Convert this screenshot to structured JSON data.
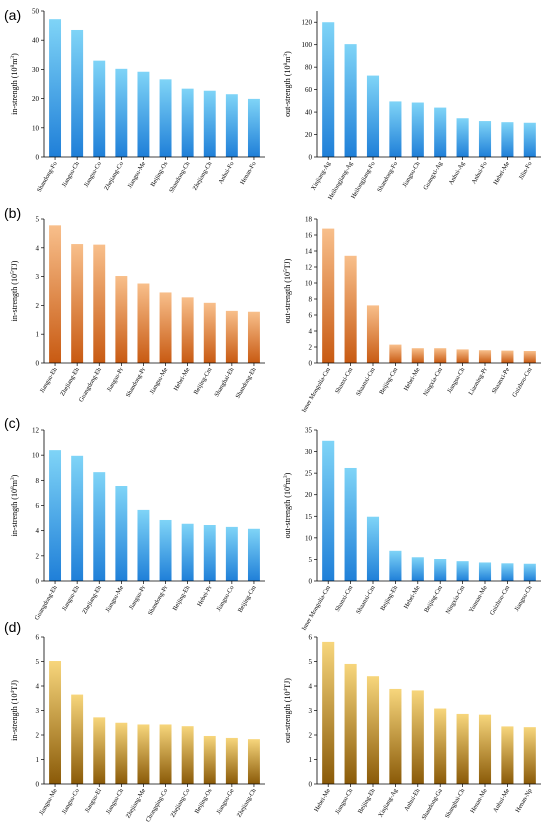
{
  "panel_labels": [
    "(a)",
    "(b)",
    "(c)",
    "(d)"
  ],
  "chart_data": [
    {
      "type": "bar",
      "panel": "(a)",
      "ylabel_main": "in-strength (10",
      "ylabel_sup": "8",
      "ylabel_end": "m",
      "ylabel_sup2": "3",
      "ylabel_tail": ")",
      "ylim": [
        0,
        50
      ],
      "yticks": [
        0,
        10,
        20,
        30,
        40,
        50
      ],
      "categories": [
        "Shandong-Fo",
        "Jiangsu-Ch",
        "Jiangsu-Co",
        "Zhejiang-Co",
        "Jiangsu-Me",
        "Beijing-Os",
        "Shandong-Ch",
        "Zhejiang-Ch",
        "Anhui-Fo",
        "Henan-Fo"
      ],
      "values": [
        47.2,
        43.5,
        33.0,
        30.2,
        29.2,
        26.6,
        23.4,
        22.7,
        21.5,
        19.9
      ],
      "color_top": "#7fd4f7",
      "color_bottom": "#1f7fd8"
    },
    {
      "type": "bar",
      "panel": "(a)",
      "ylabel_main": "out-strength (10",
      "ylabel_sup": "8",
      "ylabel_end": "m",
      "ylabel_sup2": "3",
      "ylabel_tail": ")",
      "ylim": [
        0,
        130
      ],
      "yticks": [
        0,
        20,
        40,
        60,
        80,
        100,
        120
      ],
      "categories": [
        "Xinjiang-Ag",
        "Heilongjiang-Ag",
        "Heilongjiang-Fo",
        "Shandong-Fo",
        "Jiangsu-Ch",
        "Guangxi-Ag",
        "Anhui-Ag",
        "Anhui-Fo",
        "Hebei-Me",
        "Jilin-Fo"
      ],
      "values": [
        120,
        100.5,
        72.5,
        49.5,
        48.5,
        44,
        34.5,
        32,
        31,
        30.5
      ],
      "color_top": "#7fd4f7",
      "color_bottom": "#1f7fd8"
    },
    {
      "type": "bar",
      "panel": "(b)",
      "ylabel_main": "in-strength (10",
      "ylabel_sup": "5",
      "ylabel_end": "TJ",
      "ylabel_sup2": "",
      "ylabel_tail": ")",
      "ylim": [
        0,
        5
      ],
      "yticks": [
        0,
        1,
        2,
        3,
        4,
        5
      ],
      "categories": [
        "Jiangsu-Eh",
        "Zhejiang-Eh",
        "Guangdong-Eh",
        "Jiangsu-Pr",
        "Shandong-Pr",
        "Jiangsu-Me",
        "Hebei-Me",
        "Beijing-Cm",
        "Shanghai-Eh",
        "Shandong-Eh"
      ],
      "values": [
        4.78,
        4.13,
        4.11,
        3.02,
        2.76,
        2.45,
        2.28,
        2.09,
        1.81,
        1.78
      ],
      "color_top": "#f8bf8b",
      "color_bottom": "#c85a12"
    },
    {
      "type": "bar",
      "panel": "(b)",
      "ylabel_main": "out-strength (10",
      "ylabel_sup": "5",
      "ylabel_end": "TJ",
      "ylabel_sup2": "",
      "ylabel_tail": ")",
      "ylim": [
        0,
        18
      ],
      "yticks": [
        0,
        2,
        4,
        6,
        8,
        10,
        12,
        14,
        16,
        18
      ],
      "categories": [
        "Inner Mongolia-Cm",
        "Shanxi-Cm",
        "Shaanxi-Cm",
        "Beijing-Cm",
        "Hebei-Me",
        "Ningxia-Cm",
        "Jiangsu-Ch",
        "Liaoning-Pr",
        "Shaanxi-Pe",
        "Guizhou-Cm"
      ],
      "values": [
        16.8,
        13.4,
        7.2,
        2.3,
        1.85,
        1.85,
        1.7,
        1.6,
        1.55,
        1.5
      ],
      "color_top": "#f8bf8b",
      "color_bottom": "#c85a12"
    },
    {
      "type": "bar",
      "panel": "(c)",
      "ylabel_main": "in-strength (10",
      "ylabel_sup": "8",
      "ylabel_end": "m",
      "ylabel_sup2": "3",
      "ylabel_tail": ")",
      "ylim": [
        0,
        12
      ],
      "yticks": [
        0,
        2,
        4,
        6,
        8,
        10,
        12
      ],
      "categories": [
        "Guangdong-Eh",
        "Jiangsu-Eh",
        "Zhejiang-Eh",
        "Jiangsu-Me",
        "Jiangsu-Pr",
        "Shandong-Pr",
        "Beijing-Eh",
        "Hebei-Pr",
        "Jiangsu-Co",
        "Beijing-Cm"
      ],
      "values": [
        10.4,
        9.95,
        8.65,
        7.55,
        5.65,
        4.85,
        4.55,
        4.45,
        4.3,
        4.15
      ],
      "color_top": "#7fd4f7",
      "color_bottom": "#1f7fd8"
    },
    {
      "type": "bar",
      "panel": "(c)",
      "ylabel_main": "out-strength (10",
      "ylabel_sup": "8",
      "ylabel_end": "m",
      "ylabel_sup2": "3",
      "ylabel_tail": ")",
      "ylim": [
        0,
        35
      ],
      "yticks": [
        0,
        5,
        10,
        15,
        20,
        25,
        30,
        35
      ],
      "categories": [
        "Inner Mongolia-Cm",
        "Shanxi-Cm",
        "Shaanxi-Cm",
        "Beijing-Eh",
        "Hebei-Me",
        "Beijing-Cm",
        "Ningxia-Cm",
        "Yunnan-Me",
        "Guizhou-Cm",
        "Jiangsu-Ch"
      ],
      "values": [
        32.5,
        26.2,
        14.9,
        7.0,
        5.5,
        5.1,
        4.6,
        4.3,
        4.1,
        4.0
      ],
      "color_top": "#7fd4f7",
      "color_bottom": "#1f7fd8"
    },
    {
      "type": "bar",
      "panel": "(d)",
      "ylabel_main": "in-strength (10",
      "ylabel_sup": "4",
      "ylabel_end": "TJ",
      "ylabel_sup2": "",
      "ylabel_tail": ")",
      "ylim": [
        0,
        6
      ],
      "yticks": [
        0,
        1,
        2,
        3,
        4,
        5,
        6
      ],
      "categories": [
        "Jiangsu-Me",
        "Jiangsu-Co",
        "Jiangsu-El",
        "Jiangsu-Ch",
        "Zhejiang-Me",
        "Chongqing-Co",
        "Zhejiang-Co",
        "Beijing-Os",
        "Jiangsu-Ge",
        "Zhejiang-Ch"
      ],
      "values": [
        5.02,
        3.65,
        2.72,
        2.5,
        2.43,
        2.43,
        2.36,
        1.96,
        1.88,
        1.83
      ],
      "color_top": "#f7d67c",
      "color_bottom": "#8a5a08"
    },
    {
      "type": "bar",
      "panel": "(d)",
      "ylabel_main": "out-strength (10",
      "ylabel_sup": "4",
      "ylabel_end": "TJ",
      "ylabel_sup2": "",
      "ylabel_tail": ")",
      "ylim": [
        0,
        6
      ],
      "yticks": [
        0,
        1,
        2,
        3,
        4,
        5,
        6
      ],
      "categories": [
        "Hebei-Me",
        "Jiangsu-Ch",
        "Beijing-Eh",
        "Xinjiang-Ag",
        "Anhui-Eh",
        "Shandong-Ga",
        "Shanghai-Ch",
        "Henan-Me",
        "Anhui-Me",
        "Henan-Np"
      ],
      "values": [
        5.8,
        4.9,
        4.4,
        3.88,
        3.82,
        3.08,
        2.86,
        2.83,
        2.35,
        2.32
      ],
      "color_top": "#f7d67c",
      "color_bottom": "#8a5a08"
    }
  ]
}
